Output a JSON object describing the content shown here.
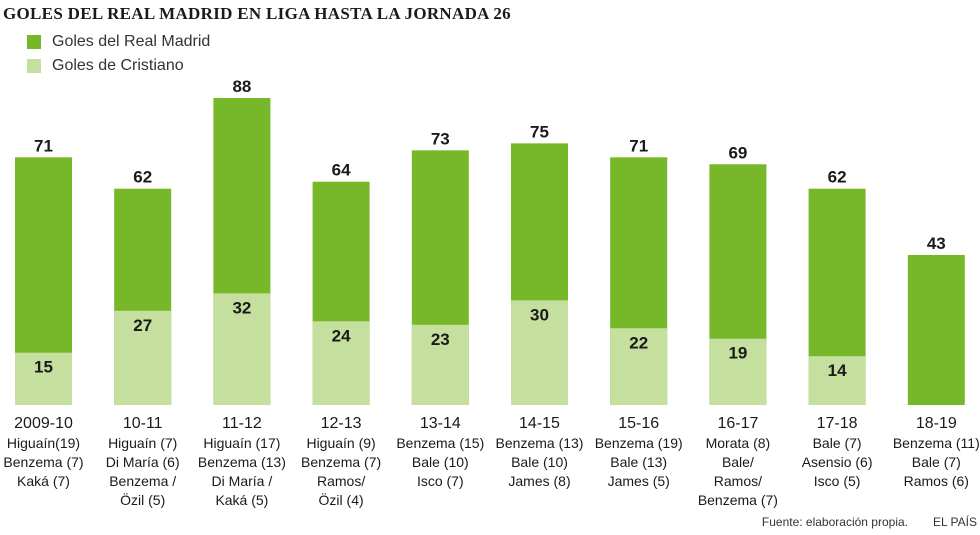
{
  "title": "GOLES DEL REAL MADRID EN LIGA HASTA LA JORNADA 26",
  "legend": [
    {
      "label": "Goles del Real Madrid",
      "color": "#76b82a"
    },
    {
      "label": "Goles de Cristiano",
      "color": "#c5df9f"
    }
  ],
  "chart_data": {
    "type": "bar",
    "categories": [
      "2009-10",
      "10-11",
      "11-12",
      "12-13",
      "13-14",
      "14-15",
      "15-16",
      "16-17",
      "17-18",
      "18-19"
    ],
    "series": [
      {
        "name": "Goles del Real Madrid",
        "values": [
          71,
          62,
          88,
          64,
          73,
          75,
          71,
          69,
          62,
          43
        ]
      },
      {
        "name": "Goles de Cristiano",
        "values": [
          15,
          27,
          32,
          24,
          23,
          30,
          22,
          19,
          14,
          null
        ]
      }
    ],
    "scorers": [
      [
        "Higuaín(19)",
        "Benzema (7)",
        "Kaká (7)"
      ],
      [
        "Higuaín (7)",
        "Di María (6)",
        "Benzema /",
        "Özil (5)"
      ],
      [
        "Higuaín (17)",
        "Benzema (13)",
        "Di María /",
        "Kaká (5)"
      ],
      [
        "Higuaín (9)",
        "Benzema (7)",
        "Ramos/",
        "Özil (4)"
      ],
      [
        "Benzema (15)",
        "Bale (10)",
        "Isco (7)"
      ],
      [
        "Benzema (13)",
        "Bale (10)",
        "James (8)"
      ],
      [
        "Benzema (19)",
        "Bale (13)",
        "James (5)"
      ],
      [
        "Morata (8)",
        "Bale/",
        "Ramos/",
        "Benzema (7)"
      ],
      [
        "Bale (7)",
        "Asensio (6)",
        "Isco (5)"
      ],
      [
        "Benzema (11)",
        "Bale (7)",
        "Ramos (6)"
      ]
    ],
    "ylim": [
      0,
      88
    ],
    "grid": false,
    "legend_position": "top-left"
  },
  "footer": {
    "source": "Fuente: elaboración propia.",
    "brand": "EL PAÍS"
  }
}
